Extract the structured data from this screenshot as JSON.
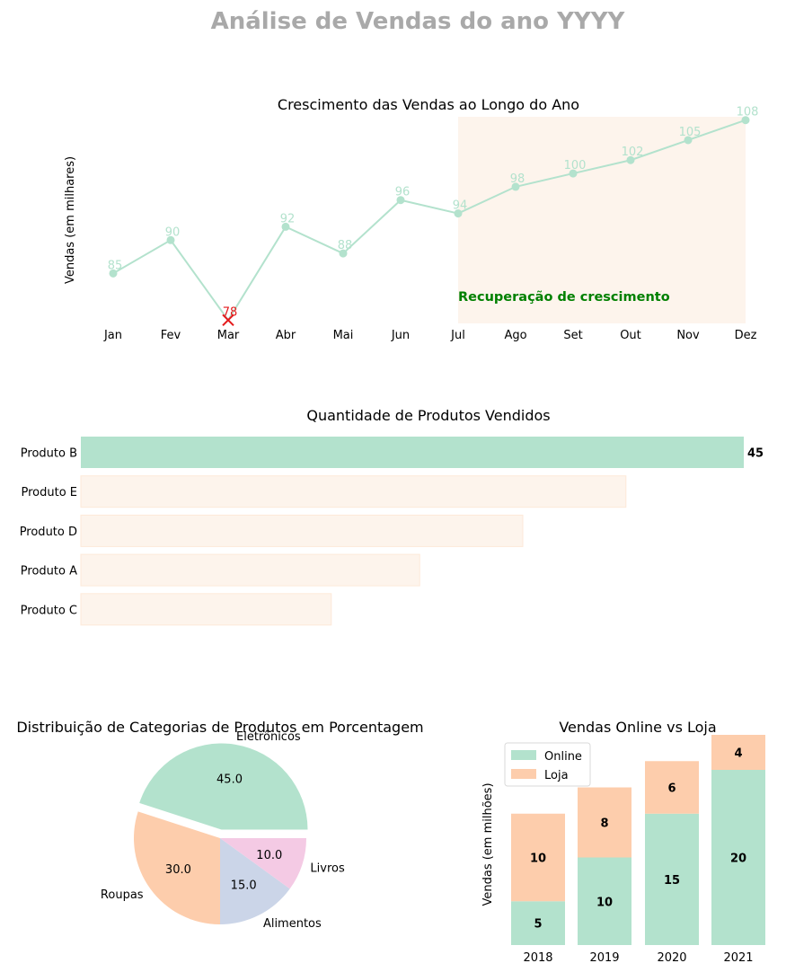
{
  "page": {
    "title": "Análise de Vendas do ano YYYY"
  },
  "chart_data": [
    {
      "type": "line",
      "title": "Crescimento das Vendas ao Longo do Ano",
      "xlabel": "",
      "ylabel": "Vendas (em milhares)",
      "categories": [
        "Jan",
        "Fev",
        "Mar",
        "Abr",
        "Mai",
        "Jun",
        "Jul",
        "Ago",
        "Set",
        "Out",
        "Nov",
        "Dez"
      ],
      "values": [
        85,
        90,
        78,
        92,
        88,
        96,
        94,
        98,
        100,
        102,
        105,
        108
      ],
      "value_labels": [
        "85",
        "90",
        "78",
        "92",
        "88",
        "96",
        "94",
        "98",
        "100",
        "102",
        "105",
        "108"
      ],
      "ylim": [
        77.5,
        108.5
      ],
      "highlight_min": {
        "category": "Mar",
        "value": 78,
        "color": "#e41a1c",
        "marker": "x"
      },
      "shaded_region": {
        "from": "Jul",
        "to": "Dez",
        "color": "#fdf4ec"
      },
      "annotation": {
        "text": "Recuperação de crescimento",
        "color": "#008000"
      },
      "line_color": "#b3e2cd",
      "grid": false
    },
    {
      "type": "bar",
      "orientation": "horizontal",
      "title": "Quantidade de Produtos Vendidos",
      "categories": [
        "Produto B",
        "Produto E",
        "Produto D",
        "Produto A",
        "Produto C"
      ],
      "values": [
        45,
        37,
        30,
        23,
        17
      ],
      "highlight": {
        "category": "Produto B",
        "label": "45",
        "color": "#b3e2cd"
      },
      "bar_color": "#fdf4ec",
      "xlim": [
        0,
        45
      ]
    },
    {
      "type": "pie",
      "title": "Distribuição de Categorias de Produtos em Porcentagem",
      "slices": [
        {
          "label": "Eletrônicos",
          "value": 45.0,
          "display": "45.0",
          "color": "#b3e2cd",
          "explode": true
        },
        {
          "label": "Roupas",
          "value": 30.0,
          "display": "30.0",
          "color": "#fdcdac",
          "explode": false
        },
        {
          "label": "Alimentos",
          "value": 15.0,
          "display": "15.0",
          "color": "#cbd5e8",
          "explode": false
        },
        {
          "label": "Livros",
          "value": 10.0,
          "display": "10.0",
          "color": "#f4cae4",
          "explode": false
        }
      ]
    },
    {
      "type": "bar",
      "stacked": true,
      "title": "Vendas Online vs Loja",
      "ylabel": "Vendas (em milhões)",
      "categories": [
        "2018",
        "2019",
        "2020",
        "2021"
      ],
      "series": [
        {
          "name": "Online",
          "values": [
            5,
            10,
            15,
            20
          ],
          "labels": [
            "5",
            "10",
            "15",
            "20"
          ],
          "color": "#b3e2cd"
        },
        {
          "name": "Loja",
          "values": [
            10,
            8,
            6,
            4
          ],
          "labels": [
            "10",
            "8",
            "6",
            "4"
          ],
          "color": "#fdcdac"
        }
      ],
      "ylim": [
        0,
        24
      ],
      "legend": "top-left"
    }
  ]
}
